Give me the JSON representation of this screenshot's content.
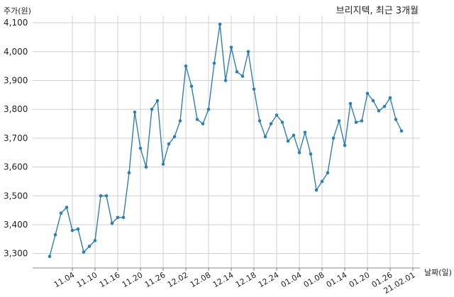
{
  "chart_data": {
    "type": "line",
    "title": "브리지텍, 최근 3개월",
    "ylabel": "주가(원)",
    "xlabel": "날짜(일)",
    "ylim": [
      3250,
      4125
    ],
    "yticks": [
      3300,
      3400,
      3500,
      3600,
      3700,
      3800,
      3900,
      4000,
      4100
    ],
    "ytick_labels": [
      "3,300",
      "3,400",
      "3,500",
      "3,600",
      "3,700",
      "3,800",
      "3,900",
      "4,000",
      "4,100"
    ],
    "xtick_labels": [
      "11.04",
      "11.10",
      "11.16",
      "11.20",
      "11.26",
      "12.02",
      "12.08",
      "12.14",
      "12.18",
      "12.24",
      "01.04",
      "01.08",
      "01.14",
      "01.20",
      "01.26",
      "21.02.01"
    ],
    "xtick_index": [
      4,
      8,
      12,
      16,
      20,
      24,
      28,
      32,
      36,
      40,
      44,
      48,
      52,
      56,
      60,
      64
    ],
    "grid": true,
    "line_color": "#2e7eb0",
    "series": [
      {
        "values": [
          3290,
          3365,
          3440,
          3460,
          3380,
          3385,
          3305,
          3325,
          3345,
          3500,
          3500,
          3405,
          3425,
          3425,
          3580,
          3790,
          3665,
          3600,
          3800,
          3830,
          3610,
          3680,
          3705,
          3760,
          3950,
          3880,
          3765,
          3750,
          3800,
          3960,
          4095,
          3900,
          4015,
          3930,
          3915,
          4000,
          3870,
          3760,
          3705,
          3750,
          3780,
          3755,
          3690,
          3710,
          3650,
          3720,
          3645,
          3520,
          3550,
          3580,
          3700,
          3760,
          3675,
          3820,
          3755,
          3760,
          3855,
          3830,
          3795,
          3810,
          3840,
          3765,
          3725
        ]
      }
    ]
  }
}
